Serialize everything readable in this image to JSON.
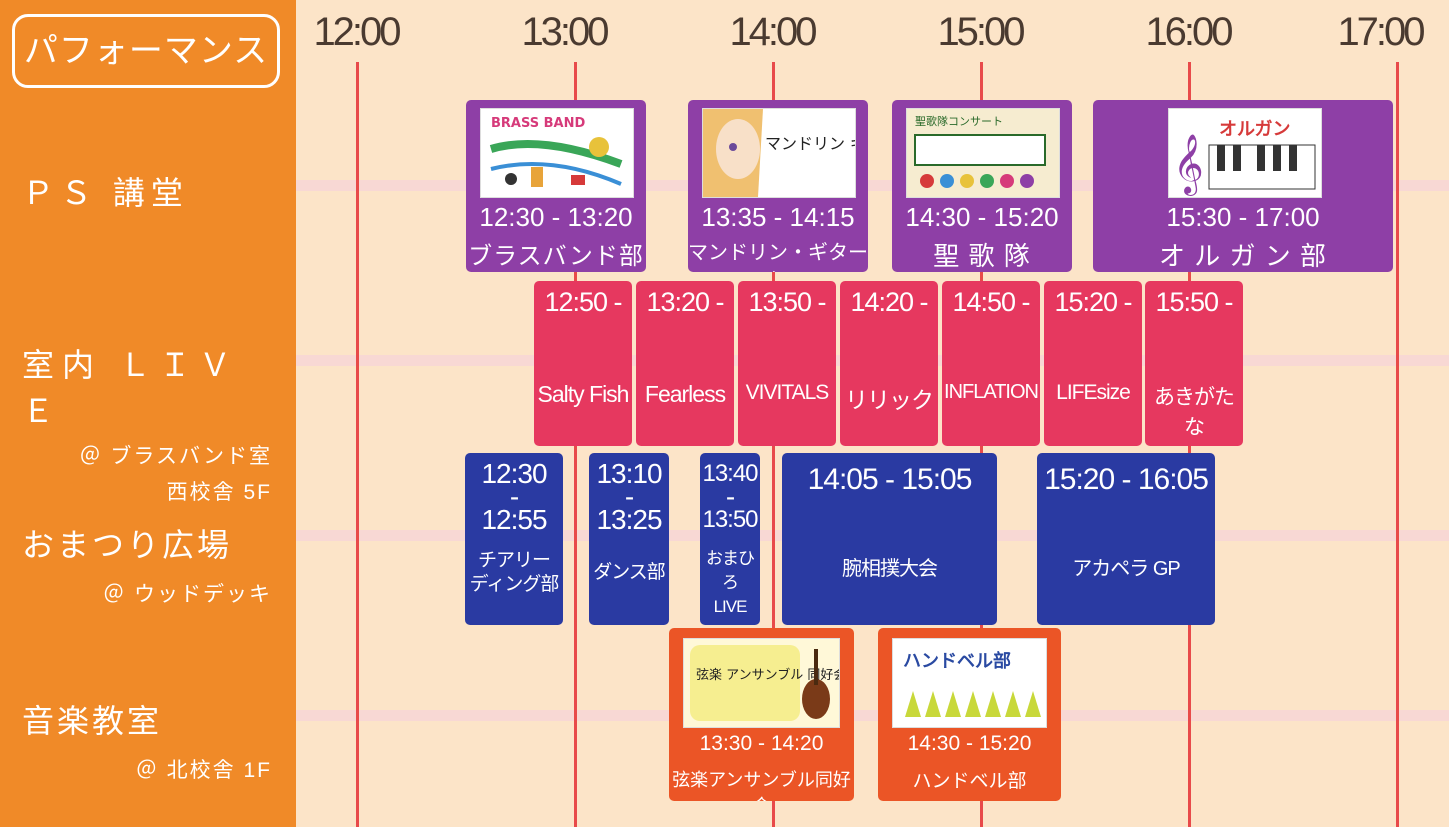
{
  "sidebar": {
    "title": "パフォーマンス",
    "venues": [
      {
        "name": "ＰＳ 講堂",
        "sub1": "",
        "sub2": ""
      },
      {
        "name": "室内 ＬＩＶＥ",
        "sub1": "＠ ブラスバンド室",
        "sub2": "西校舎 5F"
      },
      {
        "name": "おまつり広場",
        "sub1": "＠ ウッドデッキ",
        "sub2": ""
      },
      {
        "name": "音楽教室",
        "sub1": "＠ 北校舎 1F",
        "sub2": ""
      }
    ]
  },
  "timeline": {
    "hours": [
      "12:00",
      "13:00",
      "14:00",
      "15:00",
      "16:00",
      "17:00"
    ]
  },
  "ps_hall": [
    {
      "time": "12:30 - 13:20",
      "name": "ブラスバンド部",
      "art_text": "BRASS BAND"
    },
    {
      "time": "13:35 - 14:15",
      "name": "マンドリン・ギター部",
      "art_text": "マンドリン ギター部"
    },
    {
      "time": "14:30 - 15:20",
      "name": "聖 歌 隊",
      "art_text": "聖歌隊コンサート"
    },
    {
      "time": "15:30 - 17:00",
      "name": "オ ル ガ ン 部",
      "art_text": "オルガン"
    }
  ],
  "indoor_live": [
    {
      "time": "12:50 -",
      "name": "Salty Fish"
    },
    {
      "time": "13:20 -",
      "name": "Fearless"
    },
    {
      "time": "13:50 -",
      "name": "VIVITALS"
    },
    {
      "time": "14:20 -",
      "name": "リリック"
    },
    {
      "time": "14:50 -",
      "name": "INFLATION"
    },
    {
      "time": "15:20 -",
      "name": "LIFEsize"
    },
    {
      "time": "15:50 -",
      "name": "あきがたな"
    }
  ],
  "plaza": [
    {
      "start": "12:30",
      "dash": "-",
      "end": "12:55",
      "name1": "チアリー",
      "name2": "ディング部"
    },
    {
      "start": "13:10",
      "dash": "-",
      "end": "13:25",
      "name1": "ダンス部",
      "name2": ""
    },
    {
      "start": "13:40",
      "dash": "-",
      "end": "13:50",
      "name1": "おまひろ",
      "name2": "LIVE"
    },
    {
      "time": "14:05 - 15:05",
      "name": "腕相撲大会"
    },
    {
      "time": "15:20 - 16:05",
      "name": "アカペラ GP"
    }
  ],
  "music_room": [
    {
      "time": "13:30 - 14:20",
      "name": "弦楽アンサンブル同好会",
      "art_text": "弦楽 アンサンブル 同好会"
    },
    {
      "time": "14:30 - 15:20",
      "name": "ハンドベル部",
      "art_text": "ハンドベル部"
    }
  ],
  "colors": {
    "background": "#fce4c8",
    "sidebar": "#f08a28",
    "ps_hall": "#8e3fa6",
    "indoor_live": "#e6385f",
    "plaza": "#2a3aa2",
    "music_room": "#eb5526",
    "hour_line": "#e84a4a"
  }
}
